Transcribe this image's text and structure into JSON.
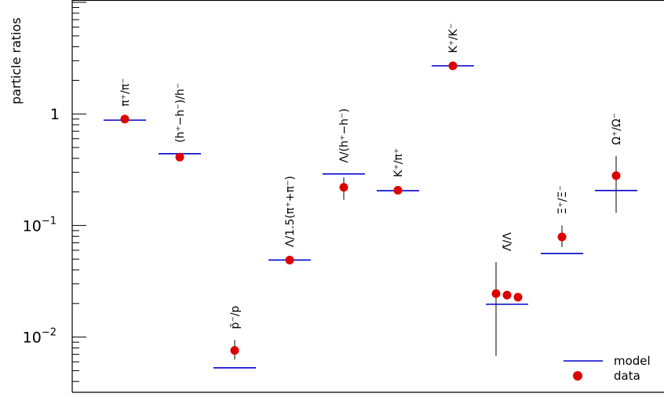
{
  "chart_data": {
    "type": "scatter",
    "ylabel": "particle ratios",
    "y_scale": "log",
    "ylim": [
      0.0032,
      10.5
    ],
    "y_ticks": [
      {
        "value": 1,
        "base": "1",
        "exp": ""
      },
      {
        "value": 0.1,
        "base": "10",
        "exp": "−1"
      },
      {
        "value": 0.01,
        "base": "10",
        "exp": "−2"
      }
    ],
    "categories": [
      {
        "label": "π⁺/π⁻",
        "model": 0.88,
        "data": [
          {
            "y": 0.9,
            "err": [
              0.87,
              0.93
            ]
          }
        ]
      },
      {
        "label": "(h⁺−h⁻)/h⁻",
        "model": 0.44,
        "data": [
          {
            "y": 0.41,
            "err": [
              0.39,
              0.43
            ]
          }
        ]
      },
      {
        "label": "p̄⁻/p",
        "model": 0.0053,
        "data": [
          {
            "y": 0.0076,
            "err": [
              0.0063,
              0.0094
            ]
          }
        ]
      },
      {
        "label": "Λ/1.5(π⁺+π⁻)",
        "model": 0.049,
        "data": [
          {
            "y": 0.049,
            "err": [
              0.047,
              0.051
            ]
          }
        ]
      },
      {
        "label": "Λ/(h⁺−h⁻)",
        "model": 0.29,
        "data": [
          {
            "y": 0.22,
            "err": [
              0.17,
              0.27
            ]
          }
        ]
      },
      {
        "label": "K⁺/π⁺",
        "model": 0.205,
        "data": [
          {
            "y": 0.207,
            "err": [
              0.198,
              0.216
            ]
          }
        ]
      },
      {
        "label": "K⁺/K⁻",
        "model": 2.7,
        "data": [
          {
            "y": 2.7,
            "err": [
              2.6,
              2.8
            ]
          }
        ]
      },
      {
        "label": "Λ̄/Λ",
        "model": 0.0197,
        "data": [
          {
            "y": 0.0245,
            "err": [
              0.0068,
              0.047
            ]
          },
          {
            "y": 0.0238,
            "err": [
              0.0228,
              0.0248
            ]
          },
          {
            "y": 0.0228,
            "err": [
              0.0218,
              0.0238
            ]
          }
        ]
      },
      {
        "label": "Ξ̄⁺/Ξ⁻",
        "model": 0.056,
        "data": [
          {
            "y": 0.079,
            "err": [
              0.064,
              0.1
            ]
          }
        ]
      },
      {
        "label": "Ω⁺/Ω⁻",
        "model": 0.206,
        "data": [
          {
            "y": 0.28,
            "err": [
              0.13,
              0.42
            ]
          }
        ]
      }
    ],
    "series": [
      {
        "name": "model",
        "marker": "horizontal-line",
        "color": "#0000cc"
      },
      {
        "name": "data",
        "marker": "circle",
        "color": "#dd0000"
      }
    ],
    "legend_position": "bottom-right",
    "grid": false
  }
}
